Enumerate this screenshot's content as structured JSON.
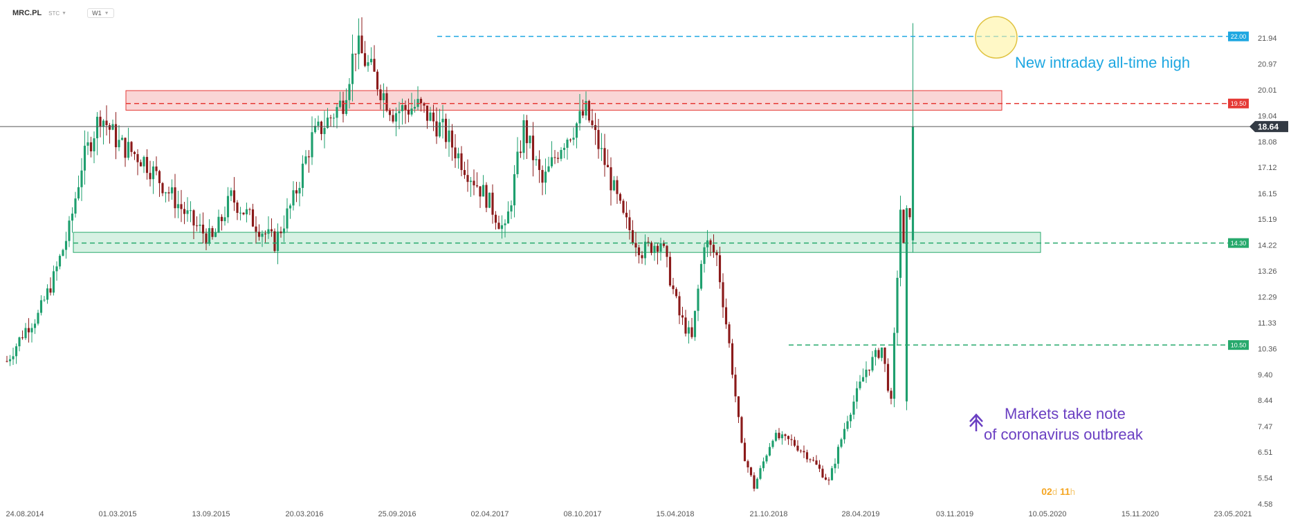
{
  "toolbar": {
    "symbol": "MRC.PL",
    "type": "STC",
    "timeframe": "W1"
  },
  "timer": {
    "days": "02",
    "day_unit": "d",
    "hours": "11",
    "hour_unit": "h"
  },
  "colors": {
    "bull": "#1e9f6e",
    "bear": "#8b1a1a",
    "resistance": "#e53935",
    "support": "#26a96c",
    "ath": "#1ea7e1",
    "ath_text": "#1ea7e1",
    "covid_text": "#6a3fc2",
    "price_tag": "#333a44"
  },
  "chart_data": {
    "type": "candlestick",
    "title": "",
    "y_axis": {
      "min": 4.58,
      "max": 21.94,
      "position": "right",
      "ticks": [
        "21.94",
        "20.97",
        "20.01",
        "19.04",
        "18.08",
        "17.12",
        "16.15",
        "15.19",
        "14.22",
        "13.26",
        "12.29",
        "11.33",
        "10.36",
        "9.40",
        "8.44",
        "7.47",
        "6.51",
        "5.54",
        "4.58"
      ]
    },
    "x_axis": {
      "ticks": [
        "24.08.2014",
        "01.03.2015",
        "13.09.2015",
        "20.03.2016",
        "25.09.2016",
        "02.04.2017",
        "08.10.2017",
        "15.04.2018",
        "21.10.2018",
        "28.04.2019",
        "03.11.2019",
        "10.05.2020",
        "15.11.2020",
        "23.05.2021"
      ]
    },
    "grid": false,
    "last_price": "18.64",
    "levels": [
      {
        "name": "ath",
        "value": 22.0,
        "label": "22.00",
        "style": "dashed"
      },
      {
        "name": "resistance",
        "value": 19.5,
        "label": "19.50",
        "style": "dashed",
        "zone": [
          19.25,
          19.98
        ]
      },
      {
        "name": "support",
        "value": 14.3,
        "label": "14.30",
        "style": "dashed",
        "zone": [
          13.95,
          14.7
        ]
      },
      {
        "name": "low-support",
        "value": 10.5,
        "label": "10.50",
        "style": "dashed"
      }
    ],
    "annotations": [
      {
        "name": "ath-annotation",
        "lines": [
          "New intraday all-time high"
        ]
      },
      {
        "name": "covid-annotation",
        "lines": [
          "Markets take note",
          "of coronavirus outbreak"
        ]
      }
    ],
    "series_path": [
      [
        0,
        9.9
      ],
      [
        6,
        11.1
      ],
      [
        10,
        11.6
      ],
      [
        15,
        13.0
      ],
      [
        20,
        14.8
      ],
      [
        24,
        17.2
      ],
      [
        30,
        19.1
      ],
      [
        36,
        18.0
      ],
      [
        44,
        17.4
      ],
      [
        52,
        16.2
      ],
      [
        60,
        15.0
      ],
      [
        66,
        14.4
      ],
      [
        72,
        16.0
      ],
      [
        80,
        15.0
      ],
      [
        86,
        14.3
      ],
      [
        92,
        15.9
      ],
      [
        98,
        18.2
      ],
      [
        104,
        19.0
      ],
      [
        108,
        19.6
      ],
      [
        112,
        21.7
      ],
      [
        118,
        20.5
      ],
      [
        124,
        19.2
      ],
      [
        132,
        19.4
      ],
      [
        140,
        18.5
      ],
      [
        148,
        17.0
      ],
      [
        154,
        16.0
      ],
      [
        160,
        14.7
      ],
      [
        166,
        18.6
      ],
      [
        172,
        16.5
      ],
      [
        178,
        18.0
      ],
      [
        186,
        19.2
      ],
      [
        192,
        17.3
      ],
      [
        198,
        15.2
      ],
      [
        204,
        14.0
      ],
      [
        210,
        14.4
      ],
      [
        216,
        11.6
      ],
      [
        220,
        10.7
      ],
      [
        224,
        14.4
      ],
      [
        228,
        13.8
      ],
      [
        232,
        10.5
      ],
      [
        236,
        6.7
      ],
      [
        240,
        5.2
      ],
      [
        246,
        7.1
      ],
      [
        252,
        6.9
      ],
      [
        258,
        6.3
      ],
      [
        264,
        5.4
      ],
      [
        270,
        7.8
      ],
      [
        276,
        9.6
      ],
      [
        281,
        10.4
      ],
      [
        284,
        8.3
      ],
      [
        287,
        15.6
      ],
      [
        289,
        12.5
      ],
      [
        291,
        18.64
      ]
    ],
    "x_span": [
      0,
      340
    ]
  }
}
